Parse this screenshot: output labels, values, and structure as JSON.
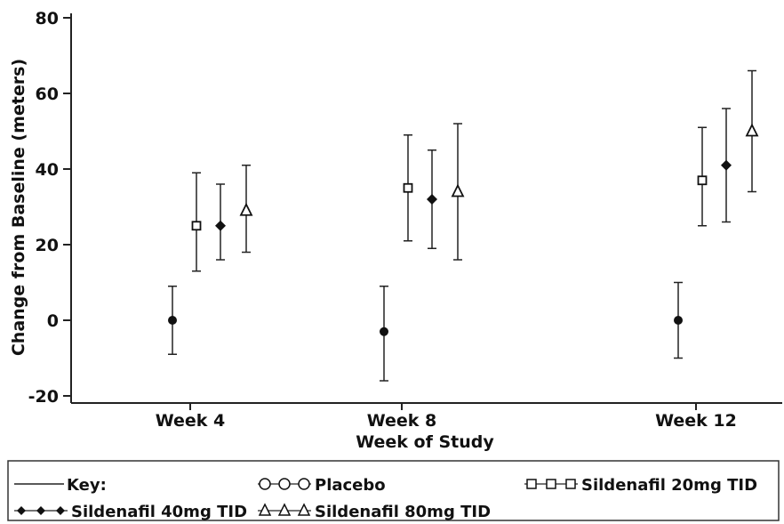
{
  "chart_data": {
    "type": "scatter",
    "categories": [
      "Week 4",
      "Week 8",
      "Week 12"
    ],
    "xlabel": "Week of Study",
    "ylabel": "Change from Baseline (meters)",
    "ylim": [
      -20,
      80
    ],
    "yticks": [
      80,
      60,
      40,
      20,
      0,
      -20
    ],
    "series": [
      {
        "name": "Placebo",
        "marker": "circle",
        "values": [
          0,
          -3,
          0
        ],
        "lower": [
          -9,
          -16,
          -10
        ],
        "upper": [
          9,
          9,
          10
        ]
      },
      {
        "name": "Sildenafil 20mg TID",
        "marker": "square",
        "values": [
          25,
          35,
          37
        ],
        "lower": [
          13,
          21,
          25
        ],
        "upper": [
          39,
          49,
          51
        ]
      },
      {
        "name": "Sildenafil 40mg TID",
        "marker": "diamond",
        "values": [
          25,
          32,
          41
        ],
        "lower": [
          16,
          19,
          26
        ],
        "upper": [
          36,
          45,
          56
        ]
      },
      {
        "name": "Sildenafil 80mg TID",
        "marker": "triangle",
        "values": [
          29,
          34,
          50
        ],
        "lower": [
          18,
          16,
          34
        ],
        "upper": [
          41,
          52,
          66
        ]
      }
    ],
    "legend": {
      "position": "bottom",
      "key_label": "Key:"
    },
    "grid": false
  }
}
